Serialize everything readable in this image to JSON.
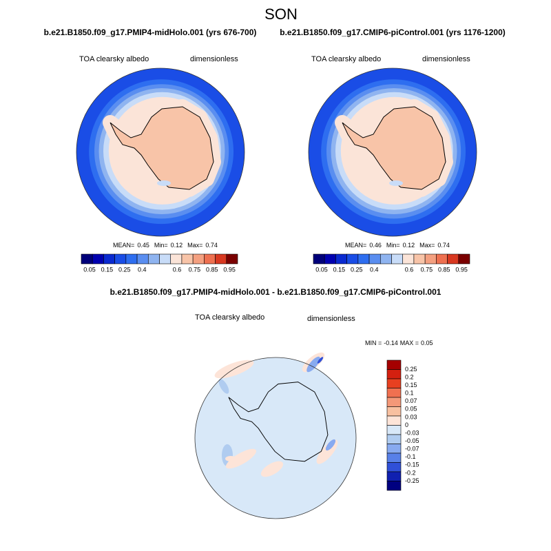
{
  "title": "SON",
  "panels": [
    {
      "subtitle": "b.e21.B1850.f09_g17.PMIP4-midHolo.001 (yrs 676-700)",
      "left_label": "TOA clearsky albedo",
      "right_label": "dimensionless",
      "stats": {
        "mean_label": "MEAN=",
        "mean": 0.45,
        "min_label": "Min=",
        "min": 0.12,
        "max_label": "Max=",
        "max": 0.74
      },
      "colorbar_labels": [
        0.05,
        0.15,
        0.25,
        0.4,
        0.6,
        0.75,
        0.85,
        0.95
      ]
    },
    {
      "subtitle": "b.e21.B1850.f09_g17.CMIP6-piControl.001 (yrs 1176-1200)",
      "left_label": "TOA clearsky albedo",
      "right_label": "dimensionless",
      "stats": {
        "mean_label": "MEAN=",
        "mean": 0.46,
        "min_label": "Min=",
        "min": 0.12,
        "max_label": "Max=",
        "max": 0.74
      },
      "colorbar_labels": [
        0.05,
        0.15,
        0.25,
        0.4,
        0.6,
        0.75,
        0.85,
        0.95
      ]
    }
  ],
  "difference": {
    "title": "b.e21.B1850.f09_g17.PMIP4-midHolo.001 - b.e21.B1850.f09_g17.CMIP6-piControl.001",
    "left_label": "TOA clearsky albedo",
    "right_label": "dimensionless",
    "stats": {
      "min_label": "MIN =",
      "min": -0.14,
      "max_label": "MAX =",
      "max": 0.05
    },
    "colorbar_labels": [
      0.25,
      0.2,
      0.15,
      0.1,
      0.07,
      0.05,
      0.03,
      0,
      -0.03,
      -0.05,
      -0.07,
      -0.1,
      -0.15,
      -0.2,
      -0.25
    ]
  }
}
